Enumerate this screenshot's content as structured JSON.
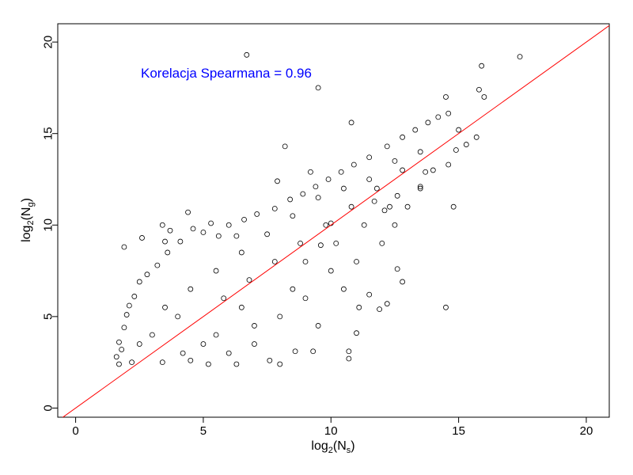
{
  "chart_data": {
    "type": "scatter",
    "xlabel": {
      "base": "log",
      "sub": "2",
      "arg_open": "(N",
      "arg_sub": "s",
      "arg_close": ")"
    },
    "ylabel": {
      "base": "log",
      "sub": "2",
      "arg_open": "(N",
      "arg_sub": "g",
      "arg_close": ")"
    },
    "xlim": [
      -0.7,
      20.9
    ],
    "ylim": [
      -0.5,
      21.0
    ],
    "x_ticks": [
      0,
      5,
      10,
      15,
      20
    ],
    "y_ticks": [
      0,
      5,
      10,
      15,
      20
    ],
    "x_tick_labels": [
      "0",
      "5",
      "10",
      "15",
      "20"
    ],
    "y_tick_labels": [
      "0",
      "5",
      "10",
      "15",
      "20"
    ],
    "annotation": "Korelacja Spearmana = 0.96",
    "annotation_color": "#0000ff",
    "reference_line": {
      "intercept": 0.0,
      "slope": 1.0,
      "color": "#ff0000"
    },
    "grid": false,
    "legend": "none",
    "point_style": "open-circle",
    "point_color": "#000000",
    "series": [
      {
        "values": [
          [
            6.7,
            19.3
          ],
          [
            17.4,
            19.2
          ],
          [
            15.9,
            18.7
          ],
          [
            9.5,
            17.5
          ],
          [
            15.8,
            17.4
          ],
          [
            14.5,
            17.0
          ],
          [
            16.0,
            17.0
          ],
          [
            10.8,
            15.6
          ],
          [
            8.2,
            14.3
          ],
          [
            15.0,
            15.2
          ],
          [
            15.3,
            14.4
          ],
          [
            15.7,
            14.8
          ],
          [
            14.6,
            13.3
          ],
          [
            14.9,
            14.1
          ],
          [
            14.8,
            11.0
          ],
          [
            14.5,
            5.5
          ],
          [
            13.7,
            12.9
          ],
          [
            13.5,
            12.1
          ],
          [
            7.9,
            12.4
          ],
          [
            9.2,
            12.9
          ],
          [
            12.6,
            11.6
          ],
          [
            12.1,
            10.8
          ],
          [
            10.0,
            10.1
          ],
          [
            9.6,
            8.9
          ],
          [
            11.7,
            11.3
          ],
          [
            1.9,
            8.8
          ],
          [
            2.6,
            9.3
          ],
          [
            3.4,
            10.0
          ],
          [
            3.7,
            9.7
          ],
          [
            4.4,
            10.7
          ],
          [
            4.6,
            9.8
          ],
          [
            5.3,
            10.1
          ],
          [
            6.6,
            10.3
          ],
          [
            6.3,
            9.4
          ],
          [
            3.5,
            9.1
          ],
          [
            12.8,
            6.9
          ],
          [
            12.6,
            7.6
          ],
          [
            11.5,
            6.2
          ],
          [
            11.1,
            5.5
          ],
          [
            11.9,
            5.4
          ],
          [
            12.2,
            5.7
          ],
          [
            11.0,
            4.1
          ],
          [
            10.7,
            3.1
          ],
          [
            10.7,
            2.7
          ],
          [
            9.3,
            3.1
          ],
          [
            8.6,
            3.1
          ],
          [
            7.6,
            2.6
          ],
          [
            8.0,
            2.4
          ],
          [
            6.3,
            2.4
          ],
          [
            5.2,
            2.4
          ],
          [
            4.5,
            2.6
          ],
          [
            3.4,
            2.5
          ],
          [
            2.2,
            2.5
          ],
          [
            1.7,
            2.4
          ],
          [
            1.6,
            2.8
          ],
          [
            1.8,
            3.2
          ],
          [
            1.7,
            3.6
          ],
          [
            1.9,
            4.4
          ],
          [
            2.0,
            5.1
          ],
          [
            2.1,
            5.6
          ],
          [
            2.3,
            6.1
          ],
          [
            2.5,
            6.9
          ],
          [
            2.8,
            7.3
          ],
          [
            3.2,
            7.8
          ],
          [
            3.6,
            8.5
          ],
          [
            4.1,
            9.1
          ],
          [
            5.0,
            9.6
          ],
          [
            5.6,
            9.4
          ],
          [
            6.0,
            10.0
          ],
          [
            7.1,
            10.6
          ],
          [
            7.8,
            10.9
          ],
          [
            8.4,
            11.4
          ],
          [
            8.9,
            11.7
          ],
          [
            9.4,
            12.1
          ],
          [
            9.9,
            12.5
          ],
          [
            10.4,
            12.9
          ],
          [
            10.9,
            13.3
          ],
          [
            11.5,
            13.7
          ],
          [
            12.2,
            14.3
          ],
          [
            12.8,
            14.8
          ],
          [
            13.3,
            15.2
          ],
          [
            13.8,
            15.6
          ],
          [
            14.2,
            15.9
          ],
          [
            14.6,
            16.1
          ],
          [
            4.0,
            5.0
          ],
          [
            5.5,
            4.0
          ],
          [
            6.5,
            5.5
          ],
          [
            7.0,
            3.5
          ],
          [
            8.0,
            5.0
          ],
          [
            9.0,
            6.0
          ],
          [
            9.5,
            4.5
          ],
          [
            10.0,
            7.5
          ],
          [
            10.5,
            6.5
          ],
          [
            11.0,
            8.0
          ],
          [
            12.0,
            9.0
          ],
          [
            12.5,
            10.0
          ],
          [
            13.0,
            11.0
          ],
          [
            13.5,
            12.0
          ],
          [
            14.0,
            13.0
          ],
          [
            3.0,
            4.0
          ],
          [
            2.5,
            3.5
          ],
          [
            3.5,
            5.5
          ],
          [
            4.5,
            6.5
          ],
          [
            5.5,
            7.5
          ],
          [
            6.5,
            8.5
          ],
          [
            7.5,
            9.5
          ],
          [
            8.5,
            10.5
          ],
          [
            9.5,
            11.5
          ],
          [
            10.5,
            12.0
          ],
          [
            11.5,
            12.5
          ],
          [
            12.5,
            13.5
          ],
          [
            13.5,
            14.0
          ],
          [
            6.0,
            3.0
          ],
          [
            7.0,
            4.5
          ],
          [
            8.5,
            6.5
          ],
          [
            9.0,
            8.0
          ],
          [
            10.2,
            9.0
          ],
          [
            11.3,
            10.0
          ],
          [
            12.3,
            11.0
          ],
          [
            4.2,
            3.0
          ],
          [
            5.0,
            3.5
          ],
          [
            5.8,
            6.0
          ],
          [
            6.8,
            7.0
          ],
          [
            7.8,
            8.0
          ],
          [
            8.8,
            9.0
          ],
          [
            9.8,
            10.0
          ],
          [
            10.8,
            11.0
          ],
          [
            11.8,
            12.0
          ],
          [
            12.8,
            13.0
          ]
        ]
      }
    ]
  }
}
